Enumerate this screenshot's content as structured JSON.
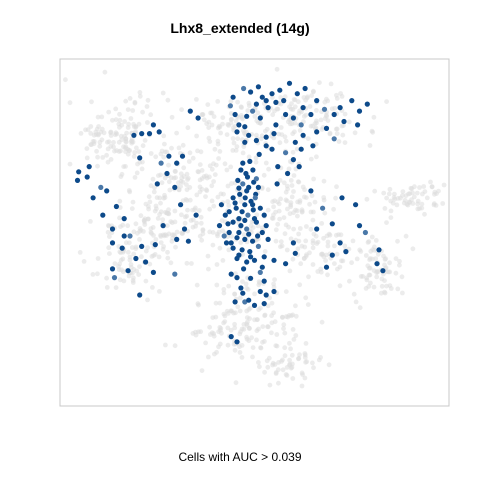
{
  "chart_data": {
    "type": "scatter",
    "title": "Lhx8_extended (14g)",
    "xlabel": "Cells with AUC > 0.039",
    "ylabel": "",
    "grid": false,
    "legend": "none",
    "colors": {
      "background_cells": "#dcdcdc",
      "high_auc": "#0d4a8a",
      "mid_auc": "#4a78a8",
      "frame": "#c8c8c8"
    },
    "xlim": [
      0,
      100
    ],
    "ylim": [
      0,
      100
    ],
    "background_clusters": [
      {
        "cx": 15,
        "cy": 78,
        "rx": 12,
        "ry": 10,
        "n": 130
      },
      {
        "cx": 33,
        "cy": 63,
        "rx": 14,
        "ry": 15,
        "n": 170
      },
      {
        "cx": 17,
        "cy": 42,
        "rx": 9,
        "ry": 9,
        "n": 70
      },
      {
        "cx": 25,
        "cy": 52,
        "rx": 10,
        "ry": 8,
        "n": 60
      },
      {
        "cx": 45,
        "cy": 80,
        "rx": 9,
        "ry": 9,
        "n": 70
      },
      {
        "cx": 63,
        "cy": 83,
        "rx": 14,
        "ry": 9,
        "n": 130
      },
      {
        "cx": 58,
        "cy": 60,
        "rx": 9,
        "ry": 12,
        "n": 100
      },
      {
        "cx": 66,
        "cy": 45,
        "rx": 7,
        "ry": 7,
        "n": 60
      },
      {
        "cx": 82,
        "cy": 40,
        "rx": 7,
        "ry": 9,
        "n": 80
      },
      {
        "cx": 90,
        "cy": 60,
        "rx": 9,
        "ry": 4,
        "n": 60
      },
      {
        "cx": 48,
        "cy": 25,
        "rx": 13,
        "ry": 12,
        "n": 160
      },
      {
        "cx": 58,
        "cy": 12,
        "rx": 8,
        "ry": 5,
        "n": 50
      },
      {
        "cx": 45,
        "cy": 50,
        "rx": 9,
        "ry": 5,
        "n": 40
      }
    ],
    "highlighted_points": [
      {
        "x": 46.5,
        "y": 68
      },
      {
        "x": 47.8,
        "y": 67
      },
      {
        "x": 49.6,
        "y": 68
      },
      {
        "x": 45.7,
        "y": 65
      },
      {
        "x": 47,
        "y": 64
      },
      {
        "x": 48.5,
        "y": 63
      },
      {
        "x": 49.8,
        "y": 64.5
      },
      {
        "x": 46.2,
        "y": 61
      },
      {
        "x": 47.6,
        "y": 60
      },
      {
        "x": 49.1,
        "y": 59
      },
      {
        "x": 50.3,
        "y": 61
      },
      {
        "x": 45.3,
        "y": 57
      },
      {
        "x": 46.8,
        "y": 56
      },
      {
        "x": 48.3,
        "y": 55
      },
      {
        "x": 49.7,
        "y": 56.5
      },
      {
        "x": 41.5,
        "y": 58
      },
      {
        "x": 42.5,
        "y": 55
      },
      {
        "x": 41,
        "y": 52
      },
      {
        "x": 43.5,
        "y": 50
      },
      {
        "x": 42.8,
        "y": 47
      },
      {
        "x": 44.5,
        "y": 53
      },
      {
        "x": 46.5,
        "y": 52
      },
      {
        "x": 48,
        "y": 51
      },
      {
        "x": 50.5,
        "y": 53
      },
      {
        "x": 51.5,
        "y": 57
      },
      {
        "x": 52,
        "y": 50
      },
      {
        "x": 45.5,
        "y": 48.5
      },
      {
        "x": 47.5,
        "y": 48
      },
      {
        "x": 49.5,
        "y": 47.5
      },
      {
        "x": 46.8,
        "y": 45
      },
      {
        "x": 48.8,
        "y": 44.5
      },
      {
        "x": 51,
        "y": 46
      },
      {
        "x": 44.5,
        "y": 45.5
      },
      {
        "x": 50,
        "y": 42
      },
      {
        "x": 48,
        "y": 41.5
      },
      {
        "x": 45.5,
        "y": 42.5
      },
      {
        "x": 47.2,
        "y": 39.5
      },
      {
        "x": 53.5,
        "y": 48
      },
      {
        "x": 52.5,
        "y": 43
      },
      {
        "x": 48.2,
        "y": 66
      },
      {
        "x": 50.5,
        "y": 65.5
      },
      {
        "x": 46,
        "y": 62.8
      },
      {
        "x": 51,
        "y": 63
      },
      {
        "x": 44.5,
        "y": 60
      },
      {
        "x": 47.5,
        "y": 58
      },
      {
        "x": 49.5,
        "y": 58
      },
      {
        "x": 43.5,
        "y": 56
      },
      {
        "x": 46,
        "y": 54
      },
      {
        "x": 50,
        "y": 54
      },
      {
        "x": 42.2,
        "y": 49
      },
      {
        "x": 44,
        "y": 47
      },
      {
        "x": 48.5,
        "y": 49.5
      },
      {
        "x": 50.8,
        "y": 49
      },
      {
        "x": 46,
        "y": 50
      },
      {
        "x": 52.5,
        "y": 55
      },
      {
        "x": 43.2,
        "y": 52.5
      },
      {
        "x": 47.5,
        "y": 53.5
      },
      {
        "x": 45,
        "y": 58.5
      },
      {
        "x": 50.2,
        "y": 60
      },
      {
        "x": 48,
        "y": 62
      },
      {
        "x": 47,
        "y": 70
      },
      {
        "x": 48.8,
        "y": 70.5
      },
      {
        "x": 49,
        "y": 43
      },
      {
        "x": 46,
        "y": 43.5
      },
      {
        "x": 53,
        "y": 52
      },
      {
        "x": 55,
        "y": 42
      },
      {
        "x": 52,
        "y": 40
      },
      {
        "x": 51.5,
        "y": 38.5
      },
      {
        "x": 44,
        "y": 38
      },
      {
        "x": 45.5,
        "y": 37
      },
      {
        "x": 52.5,
        "y": 36
      },
      {
        "x": 49,
        "y": 36.8
      },
      {
        "x": 51.5,
        "y": 33
      },
      {
        "x": 53,
        "y": 32
      },
      {
        "x": 55,
        "y": 33
      },
      {
        "x": 46.5,
        "y": 34
      },
      {
        "x": 47.5,
        "y": 30
      },
      {
        "x": 52.5,
        "y": 29.5
      },
      {
        "x": 48.5,
        "y": 30.5
      },
      {
        "x": 45,
        "y": 30
      },
      {
        "x": 50,
        "y": 29
      },
      {
        "x": 47,
        "y": 32.5
      },
      {
        "x": 44,
        "y": 20
      },
      {
        "x": 20.5,
        "y": 32
      },
      {
        "x": 45.5,
        "y": 18.5
      },
      {
        "x": 29.5,
        "y": 38
      },
      {
        "x": 31,
        "y": 58
      },
      {
        "x": 35,
        "y": 55
      },
      {
        "x": 32,
        "y": 51
      },
      {
        "x": 26.5,
        "y": 52
      },
      {
        "x": 30,
        "y": 48
      },
      {
        "x": 33,
        "y": 47.5
      },
      {
        "x": 24.5,
        "y": 46.5
      },
      {
        "x": 21,
        "y": 46
      },
      {
        "x": 18,
        "y": 49
      },
      {
        "x": 16,
        "y": 45.5
      },
      {
        "x": 13.5,
        "y": 51
      },
      {
        "x": 11,
        "y": 55
      },
      {
        "x": 8.5,
        "y": 60
      },
      {
        "x": 7,
        "y": 66
      },
      {
        "x": 4.5,
        "y": 65
      },
      {
        "x": 4.8,
        "y": 67.5
      },
      {
        "x": 7.5,
        "y": 69
      },
      {
        "x": 10.5,
        "y": 63
      },
      {
        "x": 12,
        "y": 62
      },
      {
        "x": 14.5,
        "y": 57.5
      },
      {
        "x": 16.5,
        "y": 54
      },
      {
        "x": 16.5,
        "y": 49
      },
      {
        "x": 13.5,
        "y": 47
      },
      {
        "x": 19.5,
        "y": 42.5
      },
      {
        "x": 22,
        "y": 41.5
      },
      {
        "x": 24,
        "y": 38.5
      },
      {
        "x": 14,
        "y": 37
      },
      {
        "x": 13.5,
        "y": 39.5
      },
      {
        "x": 17.5,
        "y": 39
      },
      {
        "x": 19,
        "y": 78
      },
      {
        "x": 21,
        "y": 78.5
      },
      {
        "x": 23,
        "y": 78.5
      },
      {
        "x": 25.5,
        "y": 79
      },
      {
        "x": 24,
        "y": 81
      },
      {
        "x": 20.5,
        "y": 71.5
      },
      {
        "x": 26,
        "y": 70
      },
      {
        "x": 28,
        "y": 72
      },
      {
        "x": 30,
        "y": 70
      },
      {
        "x": 31.5,
        "y": 72
      },
      {
        "x": 33.5,
        "y": 85
      },
      {
        "x": 35.5,
        "y": 83
      },
      {
        "x": 27.5,
        "y": 67
      },
      {
        "x": 25,
        "y": 64
      },
      {
        "x": 29.5,
        "y": 63
      },
      {
        "x": 43.8,
        "y": 86.5
      },
      {
        "x": 44.5,
        "y": 89
      },
      {
        "x": 45,
        "y": 84
      },
      {
        "x": 46,
        "y": 81
      },
      {
        "x": 45.5,
        "y": 79
      },
      {
        "x": 47.5,
        "y": 76
      },
      {
        "x": 48.5,
        "y": 78
      },
      {
        "x": 47.5,
        "y": 80.5
      },
      {
        "x": 48,
        "y": 83.5
      },
      {
        "x": 49.5,
        "y": 85
      },
      {
        "x": 50.5,
        "y": 87
      },
      {
        "x": 52,
        "y": 89
      },
      {
        "x": 51,
        "y": 92
      },
      {
        "x": 53,
        "y": 88
      },
      {
        "x": 54.5,
        "y": 90
      },
      {
        "x": 53.5,
        "y": 86
      },
      {
        "x": 51.5,
        "y": 83
      },
      {
        "x": 49,
        "y": 90.5
      },
      {
        "x": 47.2,
        "y": 91.5
      },
      {
        "x": 55.5,
        "y": 87.5
      },
      {
        "x": 56.5,
        "y": 91
      },
      {
        "x": 57.5,
        "y": 88
      },
      {
        "x": 59,
        "y": 93
      },
      {
        "x": 61,
        "y": 90
      },
      {
        "x": 63,
        "y": 91.5
      },
      {
        "x": 58,
        "y": 84
      },
      {
        "x": 60,
        "y": 83
      },
      {
        "x": 62,
        "y": 81
      },
      {
        "x": 55.5,
        "y": 81
      },
      {
        "x": 55,
        "y": 78.5
      },
      {
        "x": 53,
        "y": 77.5
      },
      {
        "x": 50.5,
        "y": 76.5
      },
      {
        "x": 53,
        "y": 75
      },
      {
        "x": 54.5,
        "y": 74
      },
      {
        "x": 51.2,
        "y": 72.5
      },
      {
        "x": 56,
        "y": 69
      },
      {
        "x": 58,
        "y": 73
      },
      {
        "x": 60.5,
        "y": 76
      },
      {
        "x": 62.5,
        "y": 78
      },
      {
        "x": 60,
        "y": 71
      },
      {
        "x": 62,
        "y": 74
      },
      {
        "x": 61.5,
        "y": 69
      },
      {
        "x": 58.5,
        "y": 67
      },
      {
        "x": 55.8,
        "y": 64
      },
      {
        "x": 66,
        "y": 88
      },
      {
        "x": 68,
        "y": 85.5
      },
      {
        "x": 68.5,
        "y": 80
      },
      {
        "x": 70.5,
        "y": 84
      },
      {
        "x": 72,
        "y": 86
      },
      {
        "x": 73,
        "y": 82
      },
      {
        "x": 75,
        "y": 88
      },
      {
        "x": 77,
        "y": 85
      },
      {
        "x": 76.5,
        "y": 81
      },
      {
        "x": 79,
        "y": 87
      },
      {
        "x": 70.5,
        "y": 77
      },
      {
        "x": 65,
        "y": 75
      },
      {
        "x": 62.5,
        "y": 86
      },
      {
        "x": 64.5,
        "y": 84
      },
      {
        "x": 66,
        "y": 79
      },
      {
        "x": 72.5,
        "y": 60
      },
      {
        "x": 76,
        "y": 58
      },
      {
        "x": 70,
        "y": 52.5
      },
      {
        "x": 77,
        "y": 52
      },
      {
        "x": 78.5,
        "y": 50
      },
      {
        "x": 72,
        "y": 47
      },
      {
        "x": 73.5,
        "y": 44.5
      },
      {
        "x": 70,
        "y": 43.5
      },
      {
        "x": 68.5,
        "y": 40
      },
      {
        "x": 60.5,
        "y": 44
      },
      {
        "x": 58,
        "y": 41
      },
      {
        "x": 60,
        "y": 47
      },
      {
        "x": 66,
        "y": 51
      },
      {
        "x": 67.5,
        "y": 57
      },
      {
        "x": 64.5,
        "y": 62
      },
      {
        "x": 82,
        "y": 45
      },
      {
        "x": 83,
        "y": 39
      },
      {
        "x": 81.5,
        "y": 41
      }
    ]
  }
}
